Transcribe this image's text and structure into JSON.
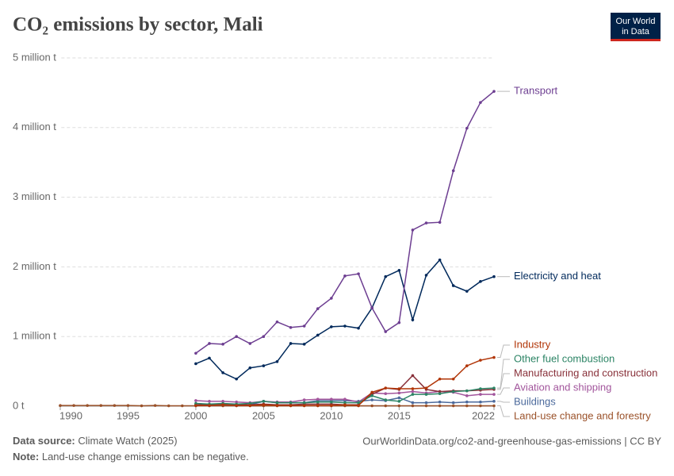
{
  "chart_data": {
    "type": "line",
    "title": "CO₂ emissions by sector, Mali",
    "x": [
      1990,
      1991,
      1992,
      1993,
      1994,
      1995,
      1996,
      1997,
      1998,
      1999,
      2000,
      2001,
      2002,
      2003,
      2004,
      2005,
      2006,
      2007,
      2008,
      2009,
      2010,
      2011,
      2012,
      2013,
      2014,
      2015,
      2016,
      2017,
      2018,
      2019,
      2020,
      2021,
      2022
    ],
    "xlim": [
      1990,
      2022
    ],
    "xticks": [
      1990,
      1995,
      2000,
      2005,
      2010,
      2015,
      2022
    ],
    "ylim": [
      0,
      5000000
    ],
    "yticks": [
      {
        "value": 0,
        "label": "0 t"
      },
      {
        "value": 1000000,
        "label": "1 million t"
      },
      {
        "value": 2000000,
        "label": "2 million t"
      },
      {
        "value": 3000000,
        "label": "3 million t"
      },
      {
        "value": 4000000,
        "label": "4 million t"
      },
      {
        "value": 5000000,
        "label": "5 million t"
      }
    ],
    "grid": true,
    "series": [
      {
        "name": "Transport",
        "color": "#6d3e91",
        "values": [
          null,
          null,
          null,
          null,
          null,
          null,
          null,
          null,
          null,
          null,
          760000,
          900000,
          890000,
          1000000,
          900000,
          1000000,
          1210000,
          1130000,
          1150000,
          1400000,
          1550000,
          1870000,
          1900000,
          1410000,
          1070000,
          1200000,
          2530000,
          2630000,
          2640000,
          3380000,
          3990000,
          4360000,
          4520000
        ]
      },
      {
        "name": "Electricity and heat",
        "color": "#00295b",
        "values": [
          null,
          null,
          null,
          null,
          null,
          null,
          null,
          null,
          null,
          null,
          610000,
          690000,
          480000,
          390000,
          550000,
          580000,
          640000,
          900000,
          890000,
          1020000,
          1140000,
          1150000,
          1120000,
          1410000,
          1860000,
          1950000,
          1240000,
          1880000,
          2100000,
          1730000,
          1650000,
          1790000,
          1860000
        ]
      },
      {
        "name": "Industry",
        "color": "#b13507",
        "values": [
          null,
          null,
          null,
          null,
          null,
          null,
          null,
          null,
          null,
          null,
          10000,
          10000,
          20000,
          10000,
          10000,
          20000,
          10000,
          10000,
          10000,
          10000,
          10000,
          20000,
          10000,
          200000,
          260000,
          250000,
          250000,
          260000,
          390000,
          390000,
          580000,
          660000,
          700000
        ]
      },
      {
        "name": "Other fuel combustion",
        "color": "#2c8465",
        "values": [
          null,
          null,
          null,
          null,
          null,
          null,
          null,
          null,
          null,
          null,
          40000,
          30000,
          40000,
          30000,
          40000,
          70000,
          50000,
          50000,
          50000,
          60000,
          60000,
          50000,
          50000,
          150000,
          90000,
          70000,
          170000,
          170000,
          180000,
          210000,
          220000,
          250000,
          260000
        ]
      },
      {
        "name": "Manufacturing and construction",
        "color": "#883039",
        "values": [
          null,
          null,
          null,
          null,
          null,
          null,
          null,
          null,
          null,
          null,
          20000,
          20000,
          30000,
          20000,
          20000,
          30000,
          20000,
          20000,
          30000,
          30000,
          30000,
          20000,
          20000,
          170000,
          260000,
          240000,
          440000,
          240000,
          210000,
          220000,
          220000,
          230000,
          240000
        ]
      },
      {
        "name": "Aviation and shipping",
        "color": "#a2559c",
        "values": [
          null,
          null,
          null,
          null,
          null,
          null,
          null,
          null,
          null,
          null,
          80000,
          70000,
          70000,
          60000,
          50000,
          70000,
          60000,
          60000,
          90000,
          100000,
          100000,
          100000,
          60000,
          190000,
          180000,
          190000,
          210000,
          190000,
          210000,
          200000,
          150000,
          170000,
          170000
        ]
      },
      {
        "name": "Buildings",
        "color": "#4c6a9c",
        "values": [
          null,
          null,
          null,
          null,
          null,
          null,
          null,
          null,
          null,
          null,
          20000,
          10000,
          20000,
          10000,
          20000,
          70000,
          50000,
          50000,
          50000,
          80000,
          80000,
          80000,
          70000,
          90000,
          80000,
          120000,
          50000,
          50000,
          60000,
          50000,
          60000,
          60000,
          70000
        ]
      },
      {
        "name": "Land-use change and forestry",
        "color": "#9a5129",
        "values": [
          10000,
          10000,
          10000,
          10000,
          10000,
          10000,
          5000,
          10000,
          5000,
          5000,
          5000,
          5000,
          5000,
          5000,
          5000,
          5000,
          5000,
          5000,
          5000,
          5000,
          5000,
          5000,
          5000,
          5000,
          5000,
          5000,
          5000,
          5000,
          5000,
          5000,
          5000,
          5000,
          5000
        ]
      }
    ]
  },
  "logo": [
    "Our World",
    "in Data"
  ],
  "source_label": "Data source:",
  "source_text": "Climate Watch (2025)",
  "url": "OurWorldinData.org/co2-and-greenhouse-gas-emissions | CC BY",
  "note_label": "Note:",
  "note_text": "Land-use change emissions can be negative."
}
